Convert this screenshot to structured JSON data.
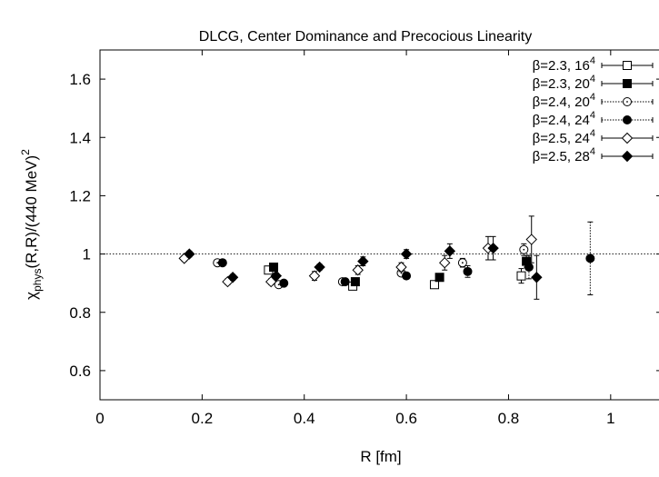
{
  "chart_data": {
    "type": "scatter",
    "title": "DLCG, Center Dominance and Precocious Linearity",
    "xlabel": "R [fm]",
    "ylabel": {
      "main": "χ",
      "sub": "phys",
      "rest": "(R,R)/(440 MeV)",
      "sup": "2"
    },
    "xlim": [
      0,
      1.1
    ],
    "ylim": [
      0.5,
      1.7
    ],
    "xticks": [
      {
        "value": 0,
        "label": "0"
      },
      {
        "value": 0.2,
        "label": "0.2"
      },
      {
        "value": 0.4,
        "label": "0.4"
      },
      {
        "value": 0.6,
        "label": "0.6"
      },
      {
        "value": 0.8,
        "label": "0.8"
      },
      {
        "value": 1,
        "label": "1"
      }
    ],
    "yticks": [
      {
        "value": 0.6,
        "label": "0.6"
      },
      {
        "value": 0.8,
        "label": "0.8"
      },
      {
        "value": 1.0,
        "label": "1"
      },
      {
        "value": 1.2,
        "label": "1.2"
      },
      {
        "value": 1.4,
        "label": "1.4"
      },
      {
        "value": 1.6,
        "label": "1.6"
      }
    ],
    "reference_line": {
      "y": 1.0,
      "style": "dotted"
    },
    "grid": false,
    "legend_position": "top-right",
    "series": [
      {
        "name": "β=2.3, 16",
        "sup": "4",
        "marker": "square-open",
        "line": "solid",
        "points": [
          [
            0.33,
            0.945,
            0.01
          ],
          [
            0.495,
            0.89,
            0.01
          ],
          [
            0.655,
            0.895,
            0.01
          ],
          [
            0.825,
            0.925,
            0.025
          ]
        ]
      },
      {
        "name": "β=2.3, 20",
        "sup": "4",
        "marker": "square-filled",
        "line": "solid",
        "points": [
          [
            0.34,
            0.955,
            0.01
          ],
          [
            0.5,
            0.905,
            0.01
          ],
          [
            0.665,
            0.92,
            0.01
          ],
          [
            0.835,
            0.975,
            0.02
          ]
        ]
      },
      {
        "name": "β=2.4, 20",
        "sup": "4",
        "marker": "circle-open",
        "line": "dotted",
        "points": [
          [
            0.23,
            0.97,
            0.01
          ],
          [
            0.35,
            0.895,
            0.01
          ],
          [
            0.475,
            0.905,
            0.01
          ],
          [
            0.59,
            0.935,
            0.01
          ],
          [
            0.71,
            0.97,
            0.015
          ],
          [
            0.83,
            1.015,
            0.02
          ]
        ]
      },
      {
        "name": "β=2.4, 24",
        "sup": "4",
        "marker": "circle-filled",
        "line": "dotted",
        "points": [
          [
            0.24,
            0.97,
            0.01
          ],
          [
            0.36,
            0.9,
            0.01
          ],
          [
            0.48,
            0.905,
            0.01
          ],
          [
            0.6,
            0.925,
            0.01
          ],
          [
            0.72,
            0.94,
            0.02
          ],
          [
            0.84,
            0.955,
            0.04
          ],
          [
            0.96,
            0.985,
            0.125
          ]
        ]
      },
      {
        "name": "β=2.5, 24",
        "sup": "4",
        "marker": "diamond-open",
        "line": "solid",
        "points": [
          [
            0.165,
            0.985,
            0.01
          ],
          [
            0.25,
            0.905,
            0.01
          ],
          [
            0.335,
            0.905,
            0.01
          ],
          [
            0.42,
            0.925,
            0.015
          ],
          [
            0.505,
            0.945,
            0.015
          ],
          [
            0.59,
            0.955,
            0.015
          ],
          [
            0.675,
            0.97,
            0.025
          ],
          [
            0.76,
            1.02,
            0.04
          ],
          [
            0.845,
            1.05,
            0.08
          ]
        ]
      },
      {
        "name": "β=2.5, 28",
        "sup": "4",
        "marker": "diamond-filled",
        "line": "solid",
        "points": [
          [
            0.175,
            1.0,
            0.01
          ],
          [
            0.26,
            0.92,
            0.01
          ],
          [
            0.345,
            0.925,
            0.01
          ],
          [
            0.43,
            0.955,
            0.01
          ],
          [
            0.515,
            0.975,
            0.015
          ],
          [
            0.6,
            1.0,
            0.015
          ],
          [
            0.685,
            1.01,
            0.025
          ],
          [
            0.77,
            1.02,
            0.04
          ],
          [
            0.855,
            0.92,
            0.075
          ]
        ]
      }
    ]
  }
}
